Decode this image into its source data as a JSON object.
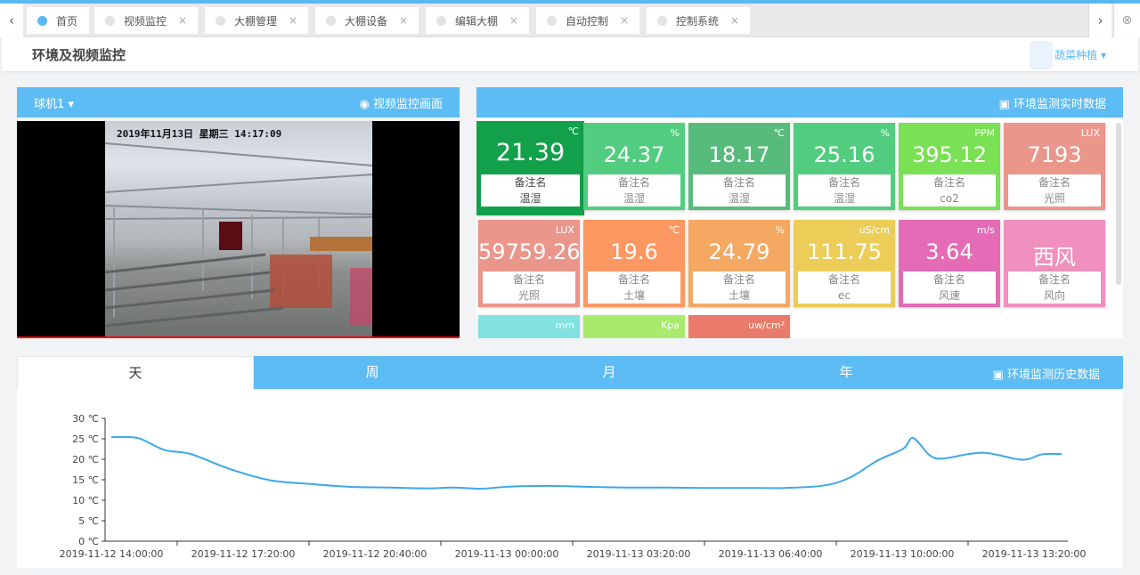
{
  "tabs": [
    {
      "label": "首页",
      "active": true,
      "closable": false
    },
    {
      "label": "视频监控",
      "closable": true
    },
    {
      "label": "大棚管理",
      "closable": true
    },
    {
      "label": "大棚设备",
      "closable": true
    },
    {
      "label": "编辑大棚",
      "closable": true
    },
    {
      "label": "自动控制",
      "closable": true
    },
    {
      "label": "控制系统",
      "closable": true
    }
  ],
  "icons": {
    "prev": "‹",
    "next": "›",
    "close_all": "⊗",
    "close": "×",
    "caret": "▾",
    "camera": "◉",
    "monitor": "▣"
  },
  "header": {
    "title": "环境及视频监控",
    "user_menu": "蔬菜种植"
  },
  "video": {
    "camera_select": "球机1",
    "title": "视频监控画面",
    "osd": "2019年11月13日  星期三  14:17:09"
  },
  "realtime": {
    "title": "环境监测实时数据",
    "tiles": [
      {
        "value": "21.39",
        "unit": "℃",
        "note": "备注名",
        "name": "温湿",
        "color": "#12a14a"
      },
      {
        "value": "24.37",
        "unit": "%",
        "note": "备注名",
        "name": "温湿",
        "color": "#52cd80"
      },
      {
        "value": "18.17",
        "unit": "℃",
        "note": "备注名",
        "name": "温湿",
        "color": "#57bb7c"
      },
      {
        "value": "25.16",
        "unit": "%",
        "note": "备注名",
        "name": "温湿",
        "color": "#52cd80"
      },
      {
        "value": "395.12",
        "unit": "PPM",
        "note": "备注名",
        "name": "co2",
        "color": "#7ae054"
      },
      {
        "value": "7193",
        "unit": "LUX",
        "note": "备注名",
        "name": "光照",
        "color": "#ea968b"
      },
      {
        "value": "59759.26",
        "unit": "LUX",
        "note": "备注名",
        "name": "光照",
        "color": "#ea968b"
      },
      {
        "value": "19.6",
        "unit": "℃",
        "note": "备注名",
        "name": "土壤",
        "color": "#fd9862"
      },
      {
        "value": "24.79",
        "unit": "%",
        "note": "备注名",
        "name": "土壤",
        "color": "#f4a862"
      },
      {
        "value": "111.75",
        "unit": "uS/cm",
        "note": "备注名",
        "name": "ec",
        "color": "#eccd58"
      },
      {
        "value": "3.64",
        "unit": "m/s",
        "note": "备注名",
        "name": "风速",
        "color": "#e56bb6"
      },
      {
        "value": "西风",
        "unit": "",
        "note": "备注名",
        "name": "风向",
        "color": "#f090be"
      },
      {
        "unit": "mm",
        "color": "#81e2e0"
      },
      {
        "unit": "Kpa",
        "color": "#a8eb6c"
      },
      {
        "unit": "uw/cm²",
        "color": "#ea7b6b"
      }
    ]
  },
  "history": {
    "title": "环境监测历史数据",
    "tabs": [
      "天",
      "周",
      "月",
      "年"
    ],
    "active_tab": "天"
  },
  "chart_data": {
    "type": "line",
    "y_ticks": [
      "0 ℃",
      "5 ℃",
      "10 ℃",
      "15 ℃",
      "20 ℃",
      "25 ℃",
      "30 ℃"
    ],
    "ylim": [
      0,
      30
    ],
    "x_ticks": [
      "2019-11-12 14:00:00",
      "2019-11-12 17:20:00",
      "2019-11-12 20:40:00",
      "2019-11-13 00:00:00",
      "2019-11-13 03:20:00",
      "2019-11-13 06:40:00",
      "2019-11-13 10:00:00",
      "2019-11-13 13:20:00"
    ],
    "color": "#3ba8ea",
    "points": [
      [
        "2019-11-12 14:00",
        25.4
      ],
      [
        "2019-11-12 14:40",
        25.2
      ],
      [
        "2019-11-12 15:20",
        22.3
      ],
      [
        "2019-11-12 16:00",
        21.3
      ],
      [
        "2019-11-12 17:00",
        17.6
      ],
      [
        "2019-11-12 18:00",
        14.9
      ],
      [
        "2019-11-12 19:00",
        14.0
      ],
      [
        "2019-11-12 20:00",
        13.3
      ],
      [
        "2019-11-12 21:00",
        13.1
      ],
      [
        "2019-11-12 22:00",
        12.9
      ],
      [
        "2019-11-12 22:40",
        13.1
      ],
      [
        "2019-11-12 23:20",
        12.8
      ],
      [
        "2019-11-13 00:00",
        13.3
      ],
      [
        "2019-11-13 01:00",
        13.5
      ],
      [
        "2019-11-13 02:00",
        13.3
      ],
      [
        "2019-11-13 03:00",
        13.1
      ],
      [
        "2019-11-13 04:00",
        13.1
      ],
      [
        "2019-11-13 05:00",
        13.0
      ],
      [
        "2019-11-13 06:00",
        13.0
      ],
      [
        "2019-11-13 07:00",
        13.0
      ],
      [
        "2019-11-13 08:00",
        13.6
      ],
      [
        "2019-11-13 08:40",
        15.6
      ],
      [
        "2019-11-13 09:20",
        19.6
      ],
      [
        "2019-11-13 10:00",
        22.6
      ],
      [
        "2019-11-13 10:15",
        25.2
      ],
      [
        "2019-11-13 10:40",
        21.0
      ],
      [
        "2019-11-13 11:00",
        20.2
      ],
      [
        "2019-11-13 12:00",
        21.6
      ],
      [
        "2019-11-13 13:00",
        19.9
      ],
      [
        "2019-11-13 13:30",
        21.2
      ],
      [
        "2019-11-13 14:00",
        21.3
      ]
    ]
  }
}
